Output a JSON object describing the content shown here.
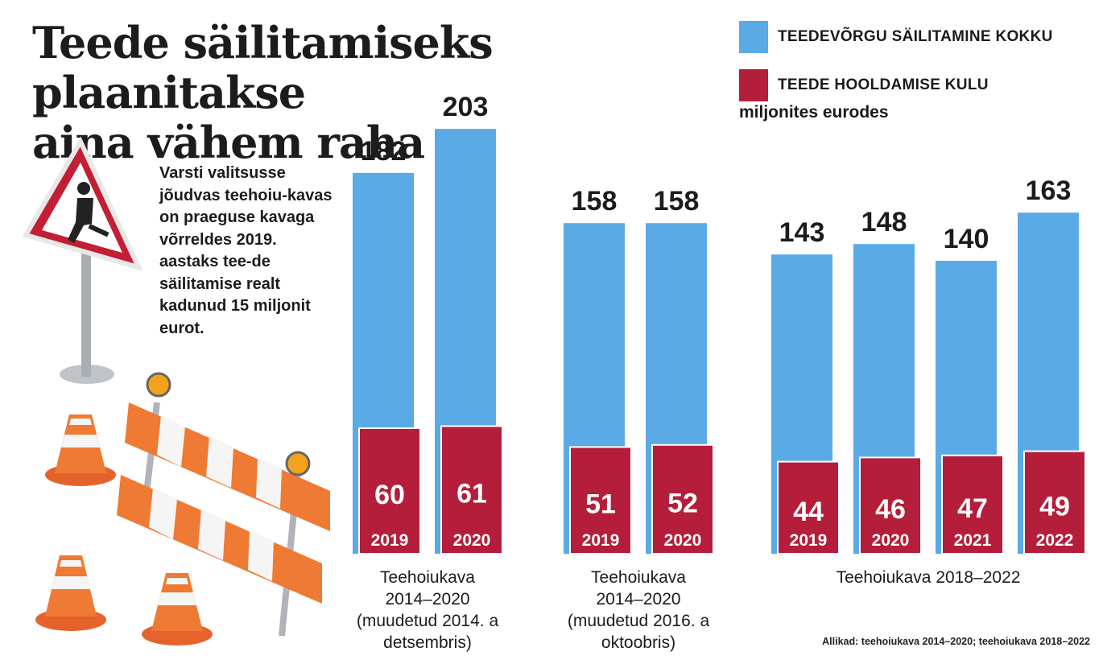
{
  "title_lines": [
    "Teede säilitamiseks plaanitakse",
    "aina vähem raha"
  ],
  "intro_text": "Varsti valitsusse jõudvas teehoiu-kavas on praeguse kavaga võrreldes 2019. aastaks tee-de säilitamise realt kadunud 15 miljonit eurot.",
  "legend": [
    {
      "label": "TEEDEVÕRGU SÄILITAMINE KOKKU",
      "color": "#5aaae6"
    },
    {
      "label": "TEEDE HOOLDAMISE KULU",
      "color": "#b51e3a"
    }
  ],
  "unit_label": "miljonites eurodes",
  "source_text": "Allikad: teehoiukava 2014–2020; teehoiukava 2018–2022",
  "chart_data": {
    "type": "bar",
    "ylim": [
      0,
      210
    ],
    "series_names": [
      "TEEDEVÕRGU SÄILITAMINE KOKKU",
      "TEEDE HOOLDAMISE KULU"
    ],
    "groups": [
      {
        "label_lines": [
          "Teehoiukava",
          "2014–2020",
          "(muudetud 2014. a",
          "detsembris)"
        ],
        "categories": [
          "2019",
          "2020"
        ],
        "total": [
          182,
          203
        ],
        "maintenance": [
          60,
          61
        ]
      },
      {
        "label_lines": [
          "Teehoiukava",
          "2014–2020",
          "(muudetud 2016. a",
          "oktoobris)"
        ],
        "categories": [
          "2019",
          "2020"
        ],
        "total": [
          158,
          158
        ],
        "maintenance": [
          51,
          52
        ]
      },
      {
        "label_lines": [
          "Teehoiukava 2018–2022"
        ],
        "categories": [
          "2019",
          "2020",
          "2021",
          "2022"
        ],
        "total": [
          143,
          148,
          140,
          163
        ],
        "maintenance": [
          44,
          46,
          47,
          49
        ]
      }
    ]
  }
}
